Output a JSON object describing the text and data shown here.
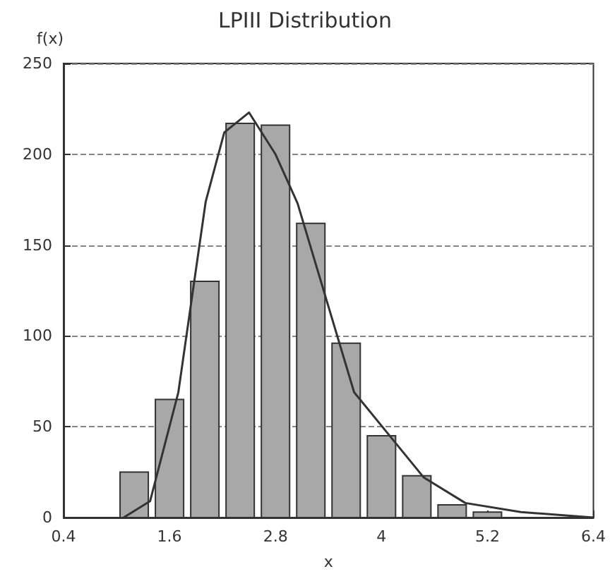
{
  "chart_data": {
    "type": "histogram",
    "title": "LPIII Distribution",
    "xlabel": "x",
    "ylabel": "f(x)",
    "bins": [
      1.0,
      1.4,
      1.8,
      2.2,
      2.6,
      3.0,
      3.4,
      3.8,
      4.2,
      4.6,
      5.0,
      5.4
    ],
    "values": [
      25,
      65,
      130,
      217,
      216,
      162,
      96,
      45,
      23,
      7,
      3
    ],
    "color": "#a8a8a8",
    "series": [
      {
        "type": "line",
        "color": "#333333",
        "x": [
          1.08,
          1.38,
          1.7,
          2.01,
          2.22,
          2.5,
          2.8,
          3.05,
          3.69,
          4.11,
          4.48,
          4.95,
          5.58,
          6.4
        ],
        "values": [
          0,
          9,
          69,
          174,
          212,
          223,
          200,
          173,
          69,
          44,
          22,
          8,
          3,
          0
        ]
      }
    ],
    "xlim": [
      0.4,
      6.4
    ],
    "xticks": [
      0.4,
      1.6,
      2.8,
      4,
      5.2,
      6.4
    ],
    "ylim": [
      0,
      250
    ],
    "yticks": [
      0,
      50,
      100,
      150,
      200,
      250
    ],
    "grid": "y",
    "marker": "none",
    "line_style": "solid"
  }
}
